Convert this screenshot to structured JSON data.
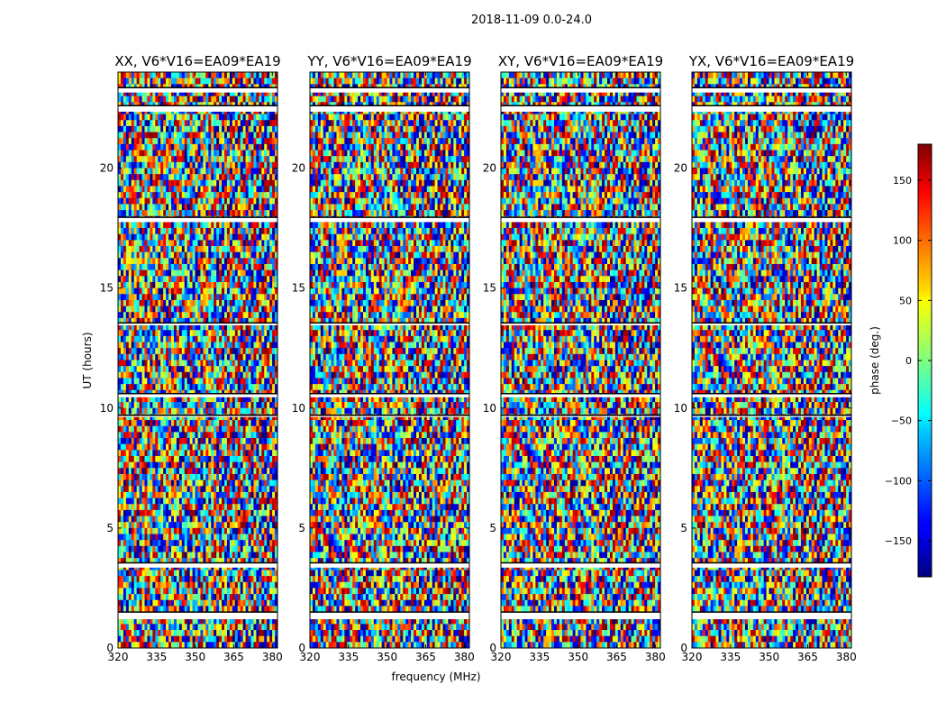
{
  "figure": {
    "suptitle": "2018-11-09 0.0-24.0",
    "xlabel": "frequency (MHz)",
    "ylabel": "UT (hours)"
  },
  "colorbar": {
    "label": "phase (deg.)",
    "ticks": [
      "150",
      "100",
      "50",
      "0",
      "−50",
      "−100",
      "−150"
    ],
    "tick_values": [
      150,
      100,
      50,
      0,
      -50,
      -100,
      -150
    ],
    "range": [
      -180,
      180
    ],
    "colormap": "jet",
    "colors": [
      "#00007f",
      "#0000ff",
      "#00ffff",
      "#ffff00",
      "#ff0000",
      "#7f0000"
    ]
  },
  "chart_data": {
    "type": "heatmap",
    "title": "2018-11-09 0.0-24.0",
    "xlabel": "frequency (MHz)",
    "ylabel": "UT (hours)",
    "xlim": [
      320,
      382
    ],
    "ylim": [
      0,
      24
    ],
    "xticks": [
      320,
      335,
      350,
      365,
      380
    ],
    "xtick_labels": [
      "320",
      "335",
      "350",
      "365",
      "380"
    ],
    "yticks": [
      0,
      5,
      10,
      15,
      20
    ],
    "ytick_labels": [
      "0",
      "5",
      "10",
      "15",
      "20"
    ],
    "value_label": "phase (deg.)",
    "value_range": [
      -180,
      180
    ],
    "panels": [
      {
        "title": "XX, V6*V16=EA09*EA19"
      },
      {
        "title": "YY, V6*V16=EA09*EA19"
      },
      {
        "title": "XY, V6*V16=EA09*EA19"
      },
      {
        "title": "YX, V6*V16=EA09*EA19"
      }
    ],
    "flagged_time_gaps_hours": [
      [
        1.2,
        1.5
      ],
      [
        3.35,
        3.55
      ],
      [
        10.45,
        10.6
      ],
      [
        17.75,
        17.95
      ],
      [
        22.35,
        22.6
      ],
      [
        23.15,
        23.35
      ],
      [
        13.45,
        13.55
      ],
      [
        9.65,
        9.7
      ]
    ]
  }
}
